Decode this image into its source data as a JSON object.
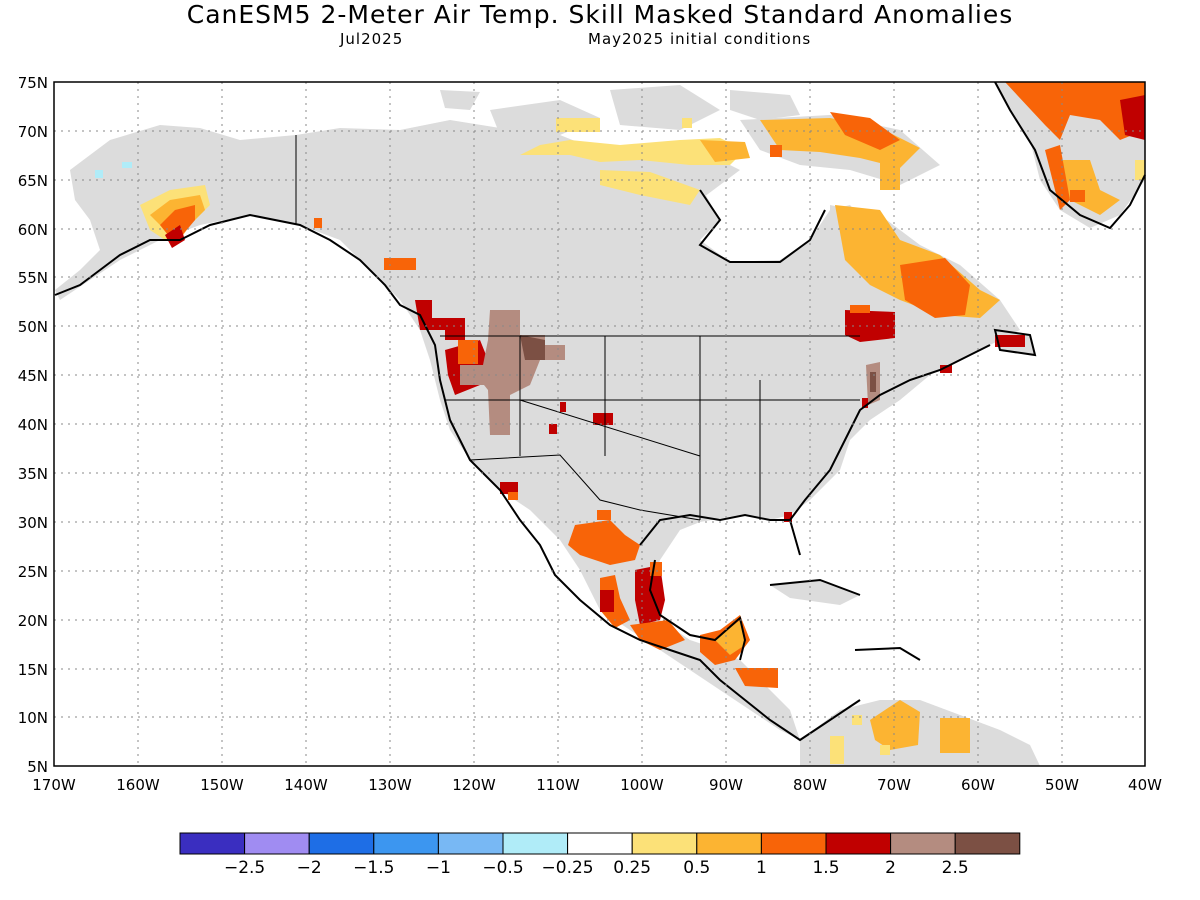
{
  "header": {
    "title": "CanESM5 2-Meter Air Temp. Skill Masked Standard Anomalies",
    "valid_month": "Jul2025",
    "init": "May2025 initial conditions"
  },
  "axes": {
    "lat_labels": [
      "75N",
      "70N",
      "65N",
      "60N",
      "55N",
      "50N",
      "45N",
      "40N",
      "35N",
      "30N",
      "25N",
      "20N",
      "15N",
      "10N",
      "5N"
    ],
    "lon_labels": [
      "170W",
      "160W",
      "150W",
      "140W",
      "130W",
      "120W",
      "110W",
      "100W",
      "90W",
      "80W",
      "70W",
      "60W",
      "50W",
      "40W"
    ]
  },
  "colorbar": {
    "colors": [
      "#3a2ec0",
      "#a08cf2",
      "#1e6ee6",
      "#3c96f0",
      "#78b8f4",
      "#b0ecf8",
      "#ffffff",
      "#fce178",
      "#fcb432",
      "#f86408",
      "#c00000",
      "#b48c80",
      "#7c5044"
    ],
    "labels": [
      "−2.5",
      "−2",
      "−1.5",
      "−1",
      "−0.5",
      "−0.25",
      "0.25",
      "0.5",
      "1",
      "1.5",
      "2",
      "2.5"
    ]
  },
  "map": {
    "masked_color": "#dcdcdc",
    "region": "North America"
  }
}
